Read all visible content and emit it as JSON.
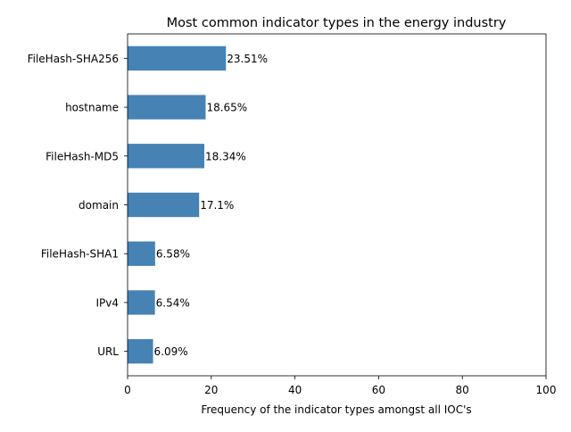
{
  "chart_data": {
    "type": "bar",
    "orientation": "horizontal",
    "title": "Most common indicator types in the energy industry",
    "xlabel": "Frequency of the indicator types amongst all IOC's",
    "ylabel": "",
    "xlim": [
      0,
      100
    ],
    "xticks": [
      "0",
      "20",
      "40",
      "60",
      "80",
      "100"
    ],
    "categories": [
      "FileHash-SHA256",
      "hostname",
      "FileHash-MD5",
      "domain",
      "FileHash-SHA1",
      "IPv4",
      "URL"
    ],
    "values": [
      23.51,
      18.65,
      18.34,
      17.1,
      6.58,
      6.54,
      6.09
    ],
    "data_labels": [
      "23.51%",
      "18.65%",
      "18.34%",
      "17.1%",
      "6.58%",
      "6.54%",
      "6.09%"
    ],
    "bar_color": "#4682b4",
    "grid": false,
    "legend": "none"
  }
}
